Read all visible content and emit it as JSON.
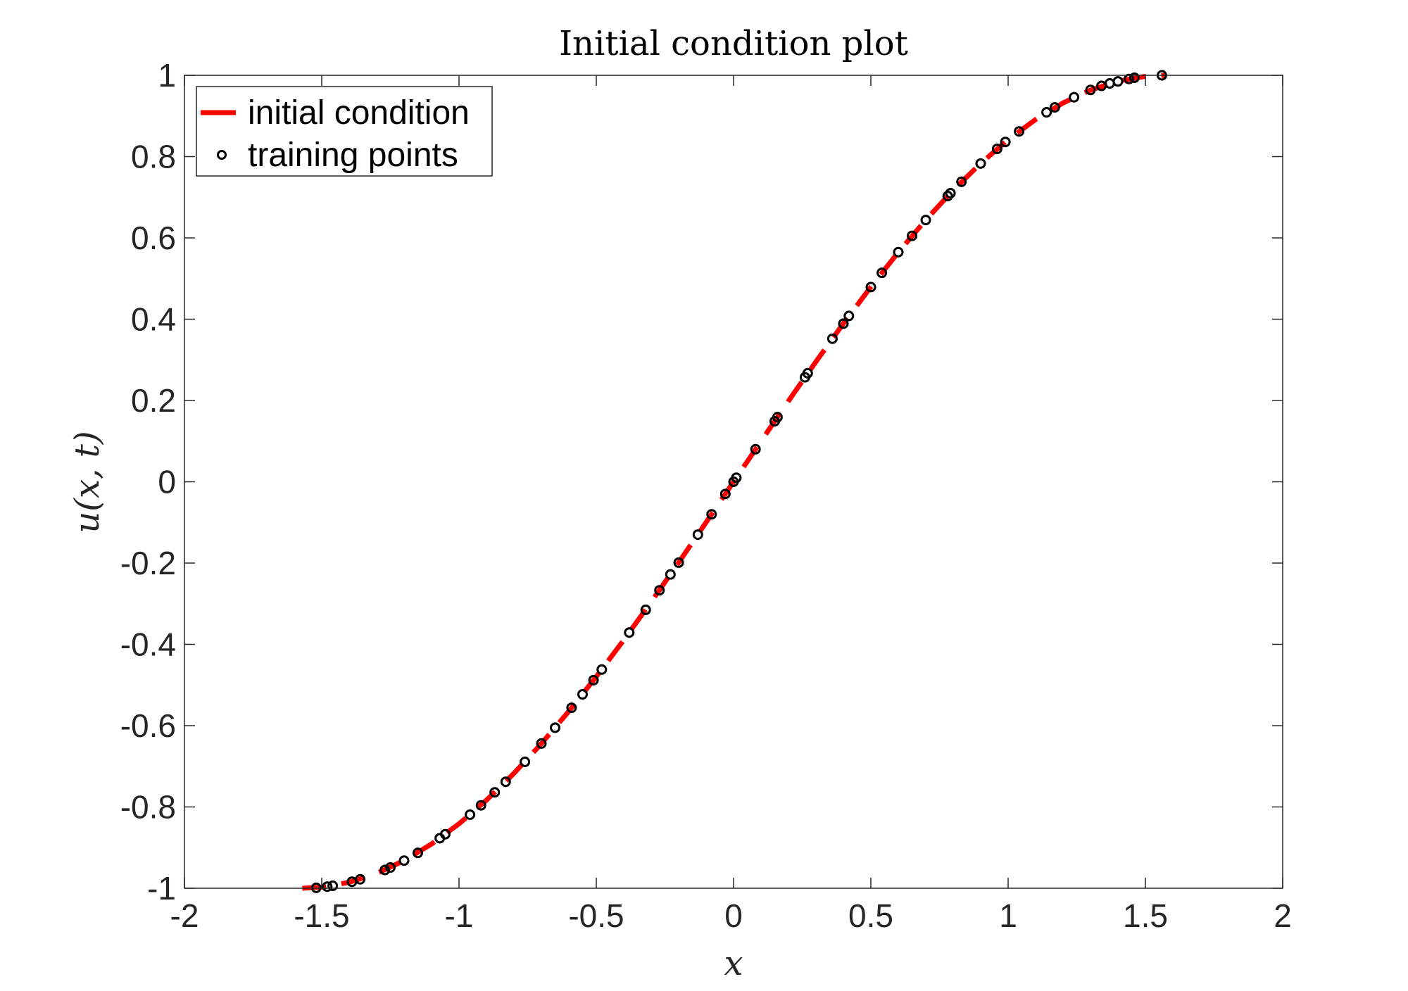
{
  "chart_data": {
    "type": "line",
    "title": "Initial condition plot",
    "xlabel": "x",
    "ylabel": "u(x, t)",
    "xlim": [
      -2,
      2
    ],
    "ylim": [
      -1,
      1
    ],
    "xticks": [
      -2,
      -1.5,
      -1,
      -0.5,
      0,
      0.5,
      1,
      1.5,
      2
    ],
    "yticks": [
      -1,
      -0.8,
      -0.6,
      -0.4,
      -0.2,
      0,
      0.2,
      0.4,
      0.6,
      0.8,
      1
    ],
    "xtick_labels": [
      "-2",
      "-1.5",
      "-1",
      "-0.5",
      "0",
      "0.5",
      "1",
      "1.5",
      "2"
    ],
    "ytick_labels": [
      "-1",
      "-0.8",
      "-0.6",
      "-0.4",
      "-0.2",
      "0",
      "0.2",
      "0.4",
      "0.6",
      "0.8",
      "1"
    ],
    "grid": false,
    "legend_position": "top-left",
    "colors": {
      "line": "#ff0000",
      "markers": "#000000",
      "axes": "#262626"
    },
    "series": [
      {
        "name": "initial condition",
        "style": "dashed",
        "color": "#ff0000",
        "x": [
          -1.5708,
          -1.5,
          -1.4,
          -1.3,
          -1.2,
          -1.1,
          -1.0,
          -0.9,
          -0.8,
          -0.7,
          -0.6,
          -0.5,
          -0.4,
          -0.3,
          -0.2,
          -0.1,
          0.0,
          0.1,
          0.2,
          0.3,
          0.4,
          0.5,
          0.6,
          0.7,
          0.8,
          0.9,
          1.0,
          1.1,
          1.2,
          1.3,
          1.4,
          1.5,
          1.5708
        ],
        "y": [
          -1.0,
          -0.9975,
          -0.9854,
          -0.9636,
          -0.932,
          -0.8912,
          -0.8415,
          -0.7833,
          -0.7174,
          -0.6442,
          -0.5646,
          -0.4794,
          -0.3894,
          -0.2955,
          -0.1987,
          -0.0998,
          0.0,
          0.0998,
          0.1987,
          0.2955,
          0.3894,
          0.4794,
          0.5646,
          0.6442,
          0.7174,
          0.7833,
          0.8415,
          0.8912,
          0.932,
          0.9636,
          0.9854,
          0.9975,
          1.0
        ]
      },
      {
        "name": "training points",
        "style": "markers",
        "marker": "circle",
        "color": "#000000",
        "x": [
          -1.52,
          -1.48,
          -1.46,
          -1.39,
          -1.36,
          -1.27,
          -1.25,
          -1.2,
          -1.15,
          -1.07,
          -1.05,
          -0.96,
          -0.92,
          -0.87,
          -0.83,
          -0.76,
          -0.7,
          -0.65,
          -0.59,
          -0.55,
          -0.51,
          -0.48,
          -0.38,
          -0.32,
          -0.27,
          -0.23,
          -0.2,
          -0.13,
          -0.08,
          -0.03,
          0.0,
          0.01,
          0.08,
          0.15,
          0.16,
          0.26,
          0.27,
          0.36,
          0.4,
          0.42,
          0.5,
          0.54,
          0.6,
          0.65,
          0.7,
          0.78,
          0.79,
          0.83,
          0.9,
          0.96,
          0.99,
          1.04,
          1.14,
          1.17,
          1.24,
          1.3,
          1.34,
          1.37,
          1.4,
          1.44,
          1.46,
          1.56
        ],
        "y": [
          -0.999,
          -0.996,
          -0.994,
          -0.984,
          -0.978,
          -0.955,
          -0.949,
          -0.932,
          -0.913,
          -0.877,
          -0.867,
          -0.819,
          -0.796,
          -0.764,
          -0.738,
          -0.689,
          -0.644,
          -0.605,
          -0.556,
          -0.523,
          -0.488,
          -0.462,
          -0.371,
          -0.315,
          -0.267,
          -0.228,
          -0.199,
          -0.13,
          -0.08,
          -0.03,
          0.0,
          0.01,
          0.08,
          0.149,
          0.159,
          0.257,
          0.267,
          0.352,
          0.389,
          0.408,
          0.479,
          0.514,
          0.565,
          0.605,
          0.644,
          0.703,
          0.71,
          0.738,
          0.783,
          0.819,
          0.836,
          0.862,
          0.909,
          0.921,
          0.946,
          0.964,
          0.974,
          0.98,
          0.985,
          0.991,
          0.994,
          1.0
        ]
      }
    ]
  }
}
